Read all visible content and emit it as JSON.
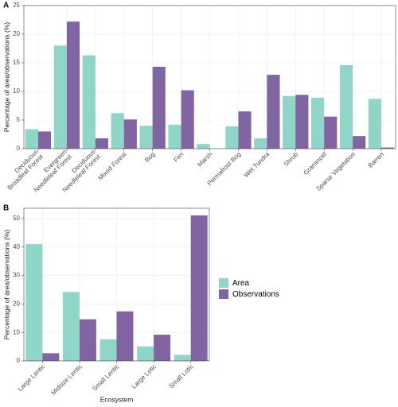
{
  "chart_data": [
    {
      "type": "bar",
      "panel": "A",
      "ylabel": "Percentage of area/observations (%)",
      "categories": [
        "Deciduous\nBroadleaf Forest",
        "Evergreen\nNeedleleaf Forest",
        "Deciduous\nNeedleleaf Forest",
        "Mixed Forest",
        "Bog",
        "Fen",
        "Marsh",
        "Permafrost Bog",
        "Wet Tundra",
        "Shrub",
        "Graminoid",
        "Sparse Vegetation",
        "Barren"
      ],
      "series": [
        {
          "color": "#8fd5c8",
          "values": [
            3.4,
            18.0,
            16.3,
            6.2,
            4.0,
            4.2,
            0.8,
            3.9,
            1.8,
            9.2,
            8.9,
            14.6,
            8.7
          ]
        },
        {
          "color": "#8165a3",
          "values": [
            3.0,
            22.2,
            1.8,
            5.1,
            14.3,
            10.2,
            0,
            6.5,
            12.9,
            9.4,
            5.6,
            2.2,
            0.2
          ]
        }
      ],
      "ylim": [
        0,
        25
      ],
      "yticks": [
        0,
        5,
        10,
        15,
        20,
        25
      ],
      "grid": true
    },
    {
      "type": "bar",
      "panel": "B",
      "ylabel": "Percentage of area/observations (%)",
      "xlabel": "Ecosystem",
      "categories": [
        "Large Lentic",
        "Midsize Lentic",
        "Small Lentic",
        "Large Lotic",
        "Small Lotic"
      ],
      "series": [
        {
          "name": "Area",
          "color": "#8fd5c8",
          "values": [
            41.0,
            24.2,
            7.6,
            5.1,
            2.1
          ]
        },
        {
          "name": "Observations",
          "color": "#8165a3",
          "values": [
            2.7,
            14.6,
            17.4,
            9.2,
            51.1
          ]
        }
      ],
      "ylim": [
        0,
        53.6
      ],
      "yticks": [
        0,
        10,
        20,
        30,
        40,
        50
      ],
      "grid": true,
      "legend": "right"
    }
  ]
}
